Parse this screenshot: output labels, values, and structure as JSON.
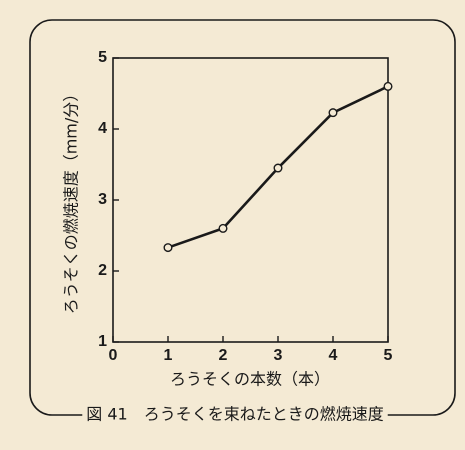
{
  "chart_data": {
    "type": "line",
    "title": "図 41　ろうそくを束ねたときの燃焼速度",
    "xlabel": "ろうそくの本数（本）",
    "ylabel": "ろうそくの燃焼速度（mm/分）",
    "x": [
      1,
      2,
      3,
      4,
      5
    ],
    "values": [
      2.33,
      2.6,
      3.45,
      4.23,
      4.6
    ],
    "color": "#1a1a1a",
    "xlim": [
      0,
      5
    ],
    "xticks": [
      0,
      1,
      2,
      3,
      4,
      5
    ],
    "ylim": [
      1,
      5
    ],
    "yticks": [
      1,
      2,
      3,
      4,
      5
    ]
  }
}
